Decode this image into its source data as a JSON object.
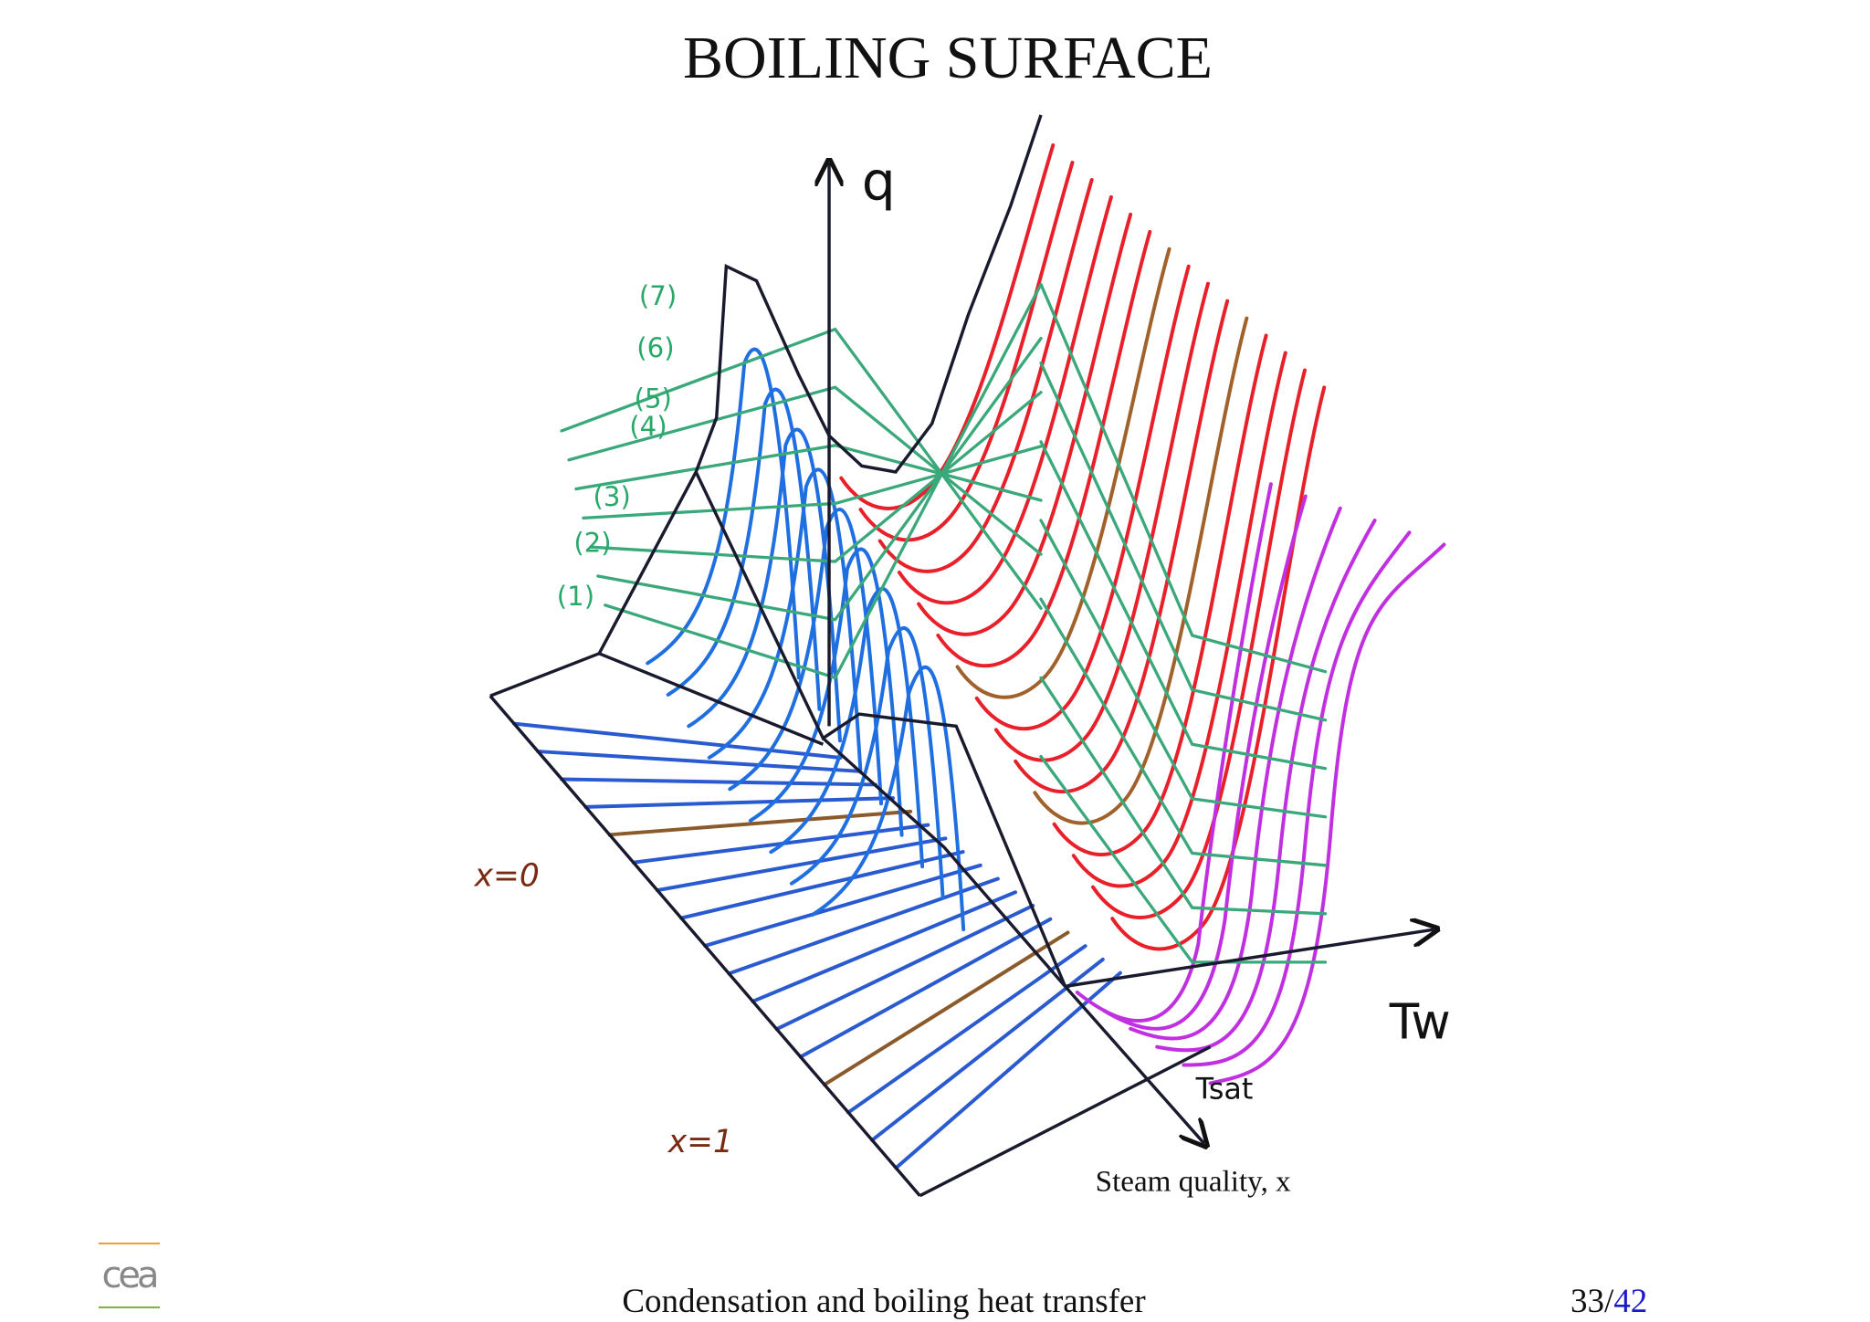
{
  "header": {
    "title": "BOILING SURFACE"
  },
  "figure": {
    "axis_q": "q",
    "curve_labels": [
      "(7)",
      "(6)",
      "(5)",
      "(4)",
      "(3)",
      "(2)",
      "(1)"
    ],
    "x0_label": "x=0",
    "x1_label": "x=1",
    "tw_label": "Tw",
    "tsat_label": "Tsat",
    "steam_quality_label": "Steam quality, x"
  },
  "footer": {
    "logo": "cea",
    "text": "Condensation and boiling heat transfer",
    "page_current": "33",
    "page_separator": "/",
    "page_total": "42"
  }
}
